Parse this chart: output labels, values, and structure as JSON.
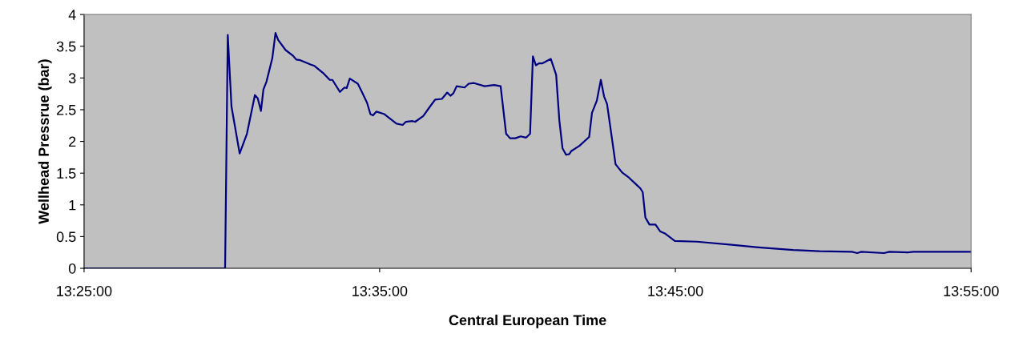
{
  "chart_data": {
    "type": "line",
    "xlabel": "Central European Time",
    "ylabel": "Wellhead Pressrue (bar)",
    "xlim": [
      13.4167,
      13.9167
    ],
    "xticks": [
      {
        "value": 13.4167,
        "label": "13:25:00"
      },
      {
        "value": 13.5833,
        "label": "13:35:00"
      },
      {
        "value": 13.75,
        "label": "13:45:00"
      },
      {
        "value": 13.9167,
        "label": "13:55:00"
      }
    ],
    "ylim": [
      0,
      4
    ],
    "yticks": [
      0,
      0.5,
      1,
      1.5,
      2,
      2.5,
      3,
      3.5,
      4
    ],
    "grid": false,
    "marker": "none",
    "line_style": "solid",
    "series": [
      {
        "color": "#000080",
        "x": [
          13.4167,
          13.4962,
          13.4977,
          13.4998,
          13.5044,
          13.5085,
          13.513,
          13.5146,
          13.5164,
          13.5178,
          13.5195,
          13.5228,
          13.5246,
          13.5261,
          13.5303,
          13.5345,
          13.5363,
          13.5386,
          13.5446,
          13.5466,
          13.5514,
          13.5552,
          13.5567,
          13.5609,
          13.5635,
          13.5647,
          13.5665,
          13.571,
          13.5733,
          13.5762,
          13.5781,
          13.5796,
          13.5815,
          13.586,
          13.5928,
          13.5963,
          13.5981,
          13.6018,
          13.6034,
          13.6079,
          13.6117,
          13.6146,
          13.6184,
          13.6214,
          13.6232,
          13.6249,
          13.6267,
          13.6312,
          13.6335,
          13.6365,
          13.6425,
          13.6478,
          13.6515,
          13.6546,
          13.6568,
          13.6598,
          13.6628,
          13.6659,
          13.6681,
          13.6697,
          13.6714,
          13.6731,
          13.6749,
          13.6798,
          13.6828,
          13.6846,
          13.6864,
          13.6884,
          13.6902,
          13.6914,
          13.6959,
          13.7014,
          13.703,
          13.7057,
          13.708,
          13.7098,
          13.7115,
          13.7163,
          13.72,
          13.7238,
          13.7276,
          13.7303,
          13.7316,
          13.7331,
          13.7354,
          13.7388,
          13.7415,
          13.7441,
          13.7497,
          13.7622,
          13.7817,
          13.7968,
          13.8164,
          13.8314,
          13.8495,
          13.8525,
          13.8548,
          13.8676,
          13.8706,
          13.8811,
          13.8841,
          13.9167
        ],
        "values": [
          0,
          0,
          3.68,
          2.55,
          1.81,
          2.12,
          2.73,
          2.68,
          2.48,
          2.82,
          2.94,
          3.31,
          3.71,
          3.6,
          3.44,
          3.35,
          3.29,
          3.28,
          3.21,
          3.19,
          3.08,
          2.97,
          2.97,
          2.78,
          2.85,
          2.84,
          2.99,
          2.91,
          2.78,
          2.61,
          2.43,
          2.41,
          2.47,
          2.43,
          2.28,
          2.26,
          2.31,
          2.32,
          2.31,
          2.4,
          2.55,
          2.66,
          2.67,
          2.77,
          2.72,
          2.76,
          2.87,
          2.85,
          2.91,
          2.92,
          2.87,
          2.89,
          2.87,
          2.12,
          2.05,
          2.05,
          2.08,
          2.06,
          2.12,
          3.34,
          3.2,
          3.23,
          3.23,
          3.3,
          3.05,
          2.33,
          1.89,
          1.79,
          1.8,
          1.85,
          1.93,
          2.07,
          2.45,
          2.64,
          2.97,
          2.71,
          2.59,
          1.64,
          1.51,
          1.43,
          1.33,
          1.26,
          1.2,
          0.8,
          0.69,
          0.69,
          0.58,
          0.55,
          0.43,
          0.42,
          0.37,
          0.33,
          0.29,
          0.27,
          0.26,
          0.24,
          0.26,
          0.24,
          0.26,
          0.25,
          0.26,
          0.26
        ]
      }
    ]
  }
}
